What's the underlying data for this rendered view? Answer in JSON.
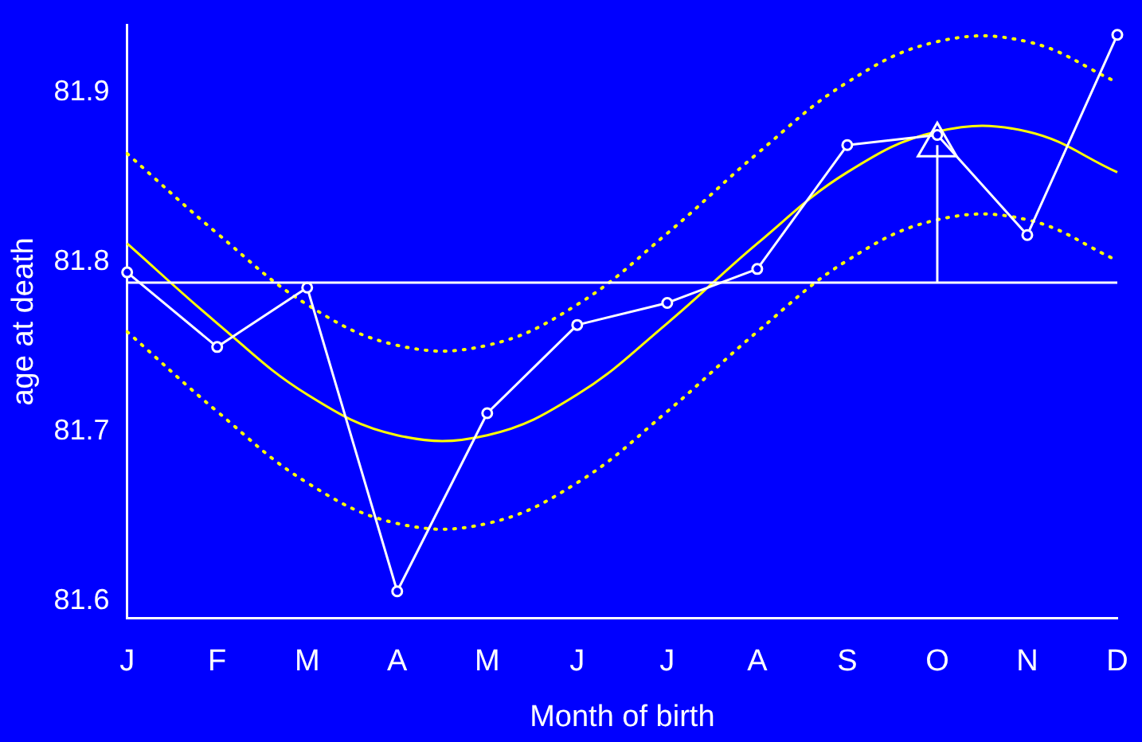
{
  "chart_data": {
    "type": "line",
    "xlabel": "Month of birth",
    "ylabel": "age at death",
    "categories": [
      "J",
      "F",
      "M",
      "A",
      "M",
      "J",
      "J",
      "A",
      "S",
      "O",
      "N",
      "D"
    ],
    "ylim": [
      81.59,
      81.94
    ],
    "yticks": [
      81.6,
      81.7,
      81.8,
      81.9
    ],
    "ref_lines": [
      {
        "axis": "y",
        "value": 81.788,
        "color": "#ffffff"
      }
    ],
    "series": [
      {
        "color": "#ffffff",
        "marker": "circle",
        "line_style": "solid",
        "values": [
          81.794,
          81.75,
          81.785,
          81.606,
          81.711,
          81.763,
          81.776,
          81.796,
          81.869,
          81.875,
          81.816,
          81.934
        ]
      },
      {
        "color": "#ffff00",
        "marker": "none",
        "line_style": "solid",
        "values": [
          81.811,
          81.764,
          81.722,
          81.698,
          81.698,
          81.722,
          81.764,
          81.811,
          81.853,
          81.877,
          81.877,
          81.853
        ]
      },
      {
        "color": "#ffff00",
        "marker": "none",
        "line_style": "dotted",
        "values": [
          81.864,
          81.817,
          81.775,
          81.751,
          81.751,
          81.775,
          81.817,
          81.864,
          81.906,
          81.93,
          81.93,
          81.906
        ]
      },
      {
        "color": "#ffff00",
        "marker": "none",
        "line_style": "dotted",
        "values": [
          81.759,
          81.712,
          81.67,
          81.646,
          81.646,
          81.67,
          81.712,
          81.759,
          81.801,
          81.825,
          81.825,
          81.801
        ]
      },
      {
        "type": "scatter",
        "color": "#ffffff",
        "marker": "triangle",
        "x": [
          "O"
        ],
        "values": [
          81.869
        ],
        "errors": [
          [
            81.788,
            81.869
          ]
        ]
      }
    ]
  }
}
